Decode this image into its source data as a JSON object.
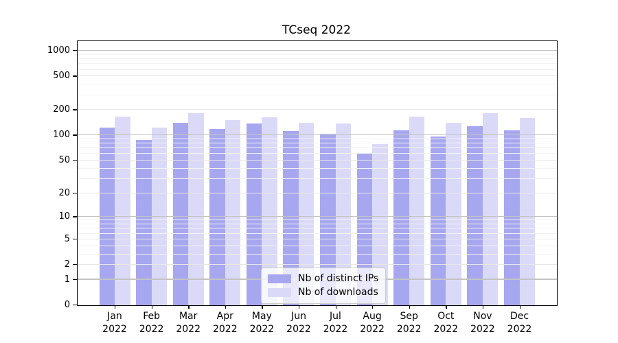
{
  "title": "TCseq 2022",
  "chart_data": {
    "type": "bar",
    "categories": [
      "Jan",
      "Feb",
      "Mar",
      "Apr",
      "May",
      "Jun",
      "Jul",
      "Aug",
      "Sep",
      "Oct",
      "Nov",
      "Dec"
    ],
    "year_label": "2022",
    "series": [
      {
        "name": "Nb of distinct IPs",
        "color": "#a7a7f0",
        "values": [
          124,
          88,
          140,
          118,
          139,
          112,
          104,
          60,
          114,
          97,
          128,
          114
        ]
      },
      {
        "name": "Nb of downloads",
        "color": "#dadaf8",
        "values": [
          167,
          123,
          183,
          151,
          165,
          141,
          138,
          79,
          167,
          140,
          183,
          160
        ]
      }
    ],
    "y_ticks": [
      0,
      1,
      2,
      5,
      10,
      20,
      50,
      100,
      200,
      500,
      1000
    ],
    "y_minor_gridlines": [
      3,
      4,
      6,
      7,
      8,
      9,
      30,
      40,
      60,
      70,
      80,
      90,
      300,
      400,
      600,
      700,
      800,
      900
    ],
    "y_scale": "log10(value+1)",
    "ylim": [
      0,
      1300
    ],
    "grid": true,
    "legend_position": "lower-center",
    "xlabel": "",
    "ylabel": ""
  },
  "colors": {
    "bar_distinct_ips": "#a7a7f0",
    "bar_downloads": "#dadaf8",
    "grid_decade": "#c3c3c3",
    "grid_labeled": "#e7e7e7",
    "grid_minor": "#f3f3f3",
    "spine": "#000000"
  }
}
